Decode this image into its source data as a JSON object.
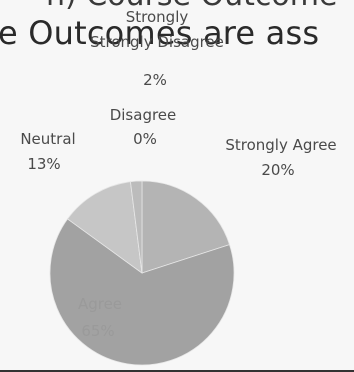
{
  "header": {
    "title_top": "n) Course Outcome",
    "title_main": "e Outcomes are ass"
  },
  "chart_data": {
    "type": "pie",
    "categories": [
      "Strongly Agree",
      "Agree",
      "Neutral",
      "Disagree",
      "Strongly Disagree"
    ],
    "values": [
      20,
      65,
      13,
      0,
      2
    ],
    "value_labels": [
      "20%",
      "65%",
      "13%",
      "0%",
      "2%"
    ],
    "colors": [
      "#b4b4b4",
      "#a2a2a2",
      "#c6c6c6",
      "#d2d2d2",
      "#bcbcbc"
    ],
    "legend": "none"
  }
}
